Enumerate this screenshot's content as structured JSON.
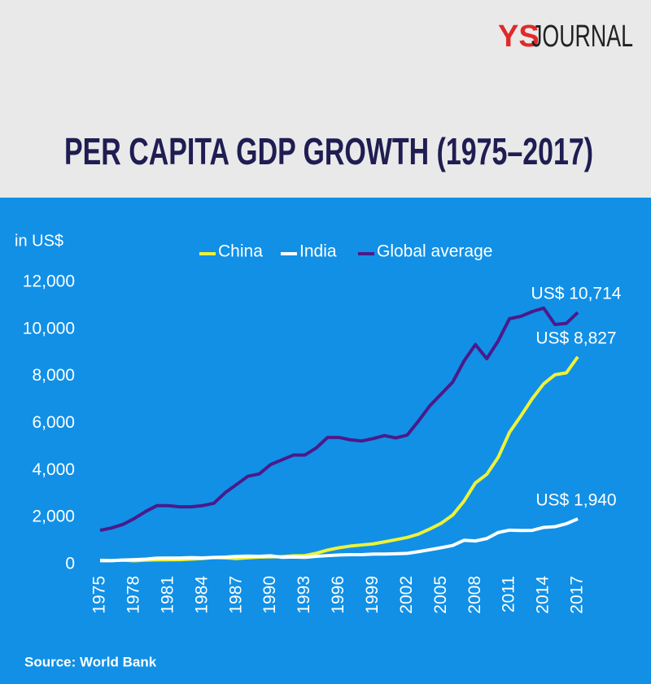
{
  "logo": {
    "brand": "YS",
    "name": "JOURNAL"
  },
  "chart_data": {
    "type": "line",
    "title": "PER CAPITA GDP GROWTH (1975–2017)",
    "y_label": "in US$",
    "source": "Source: World Bank",
    "x": [
      1975,
      1976,
      1977,
      1978,
      1979,
      1980,
      1981,
      1982,
      1983,
      1984,
      1985,
      1986,
      1987,
      1988,
      1989,
      1990,
      1991,
      1992,
      1993,
      1994,
      1995,
      1996,
      1997,
      1998,
      1999,
      2000,
      2001,
      2002,
      2003,
      2004,
      2005,
      2006,
      2007,
      2008,
      2009,
      2010,
      2011,
      2012,
      2013,
      2014,
      2015,
      2016,
      2017
    ],
    "xlim": [
      1975,
      2017
    ],
    "xticks": [
      1975,
      1978,
      1981,
      1984,
      1987,
      1990,
      1993,
      1996,
      1999,
      2002,
      2005,
      2008,
      2011,
      2014,
      2017
    ],
    "ylim": [
      0,
      12000
    ],
    "yticks": [
      0,
      {
        "value": 2000,
        "label": "2,000"
      },
      {
        "value": 4000,
        "label": "4,000"
      },
      {
        "value": 6000,
        "label": "6,000"
      },
      {
        "value": 8000,
        "label": "8,000"
      },
      {
        "value": 10000,
        "label": "10,000"
      },
      {
        "value": 12000,
        "label": "12,000"
      }
    ],
    "grid": false,
    "series": [
      {
        "name": "China",
        "color": "#eef23a",
        "values": [
          178,
          165,
          185,
          156,
          184,
          195,
          197,
          203,
          225,
          251,
          294,
          281,
          252,
          284,
          311,
          318,
          333,
          366,
          377,
          473,
          610,
          709,
          781,
          828,
          873,
          959,
          1053,
          1149,
          1289,
          1509,
          1753,
          2099,
          2694,
          3468,
          3832,
          4550,
          5618,
          6317,
          7051,
          7679,
          8067,
          8148,
          8827
        ],
        "value_labels": [
          null,
          null,
          null,
          null,
          null,
          null,
          null,
          null,
          null,
          null,
          null,
          null,
          null,
          null,
          null,
          null,
          null,
          null,
          null,
          null,
          null,
          null,
          null,
          null,
          null,
          null,
          null,
          null,
          null,
          null,
          null,
          null,
          null,
          null,
          null,
          null,
          null,
          null,
          null,
          null,
          null,
          null,
          "US$ 8,827"
        ]
      },
      {
        "name": "India",
        "color": "#ffffff",
        "values": [
          158,
          161,
          186,
          205,
          224,
          267,
          271,
          274,
          291,
          277,
          297,
          310,
          340,
          355,
          347,
          368,
          303,
          317,
          301,
          346,
          374,
          400,
          415,
          413,
          442,
          443,
          452,
          471,
          546,
          627,
          714,
          806,
          1028,
          999,
          1102,
          1358,
          1458,
          1444,
          1450,
          1574,
          1606,
          1730,
          1940
        ],
        "value_labels": [
          null,
          null,
          null,
          null,
          null,
          null,
          null,
          null,
          null,
          null,
          null,
          null,
          null,
          null,
          null,
          null,
          null,
          null,
          null,
          null,
          null,
          null,
          null,
          null,
          null,
          null,
          null,
          null,
          null,
          null,
          null,
          null,
          null,
          null,
          null,
          null,
          null,
          null,
          null,
          null,
          null,
          null,
          "US$ 1,940"
        ]
      },
      {
        "name": "Global average",
        "color": "#4b1a8a",
        "values": [
          1450,
          1550,
          1700,
          1950,
          2250,
          2500,
          2500,
          2450,
          2450,
          2500,
          2600,
          3050,
          3400,
          3750,
          3850,
          4250,
          4450,
          4650,
          4650,
          4950,
          5400,
          5400,
          5300,
          5250,
          5350,
          5480,
          5380,
          5500,
          6100,
          6750,
          7250,
          7750,
          8650,
          9350,
          8750,
          9500,
          10450,
          10550,
          10750,
          10900,
          10200,
          10250,
          10714
        ],
        "value_labels": [
          null,
          null,
          null,
          null,
          null,
          null,
          null,
          null,
          null,
          null,
          null,
          null,
          null,
          null,
          null,
          null,
          null,
          null,
          null,
          null,
          null,
          null,
          null,
          null,
          null,
          null,
          null,
          null,
          null,
          null,
          null,
          null,
          null,
          null,
          null,
          null,
          null,
          null,
          null,
          null,
          null,
          null,
          "US$ 10,714"
        ]
      }
    ]
  }
}
